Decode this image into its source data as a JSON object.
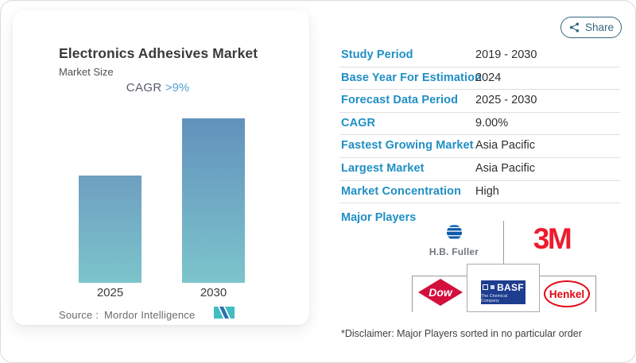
{
  "share": {
    "label": "Share"
  },
  "chart_card": {
    "title": "Electronics Adhesives Market",
    "subtitle": "Market Size",
    "cagr_label": "CAGR",
    "cagr_value": ">9%",
    "source_label": "Source :",
    "source_value": "Mordor Intelligence",
    "logo_name": "mordor-intelligence-logo"
  },
  "chart_data": {
    "type": "bar",
    "title": "Electronics Adhesives Market — Market Size",
    "categories": [
      "2025",
      "2030"
    ],
    "values": [
      65,
      100
    ],
    "ylim": [
      0,
      100
    ],
    "xlabel": "",
    "ylabel": "",
    "grid": false,
    "annotations": [
      "CAGR >9%"
    ],
    "colors": {
      "bar_tops": [
        "#6e9fc0",
        "#6292bc"
      ],
      "bar_bottom": "#7cc4cc"
    }
  },
  "table": {
    "rows": [
      {
        "label": "Study Period",
        "value": "2019 - 2030"
      },
      {
        "label": "Base Year For Estimation",
        "value": "2024"
      },
      {
        "label": "Forecast Data Period",
        "value": "2025 - 2030"
      },
      {
        "label": "CAGR",
        "value": "9.00%"
      },
      {
        "label": "Fastest Growing Market",
        "value": "Asia Pacific"
      },
      {
        "label": "Largest Market",
        "value": "Asia Pacific"
      },
      {
        "label": "Market Concentration",
        "value": "High"
      }
    ]
  },
  "major_players": {
    "label": "Major Players",
    "players": [
      "H.B. Fuller",
      "3M",
      "Dow",
      "BASF",
      "Henkel"
    ],
    "basf_sub": "The Chemical Company"
  },
  "disclaimer": "*Disclaimer: Major Players sorted in no particular order",
  "colors": {
    "accent_blue": "#1f8fc4",
    "cagr_blue": "#57a0d4",
    "share_teal": "#35677f",
    "divider_gray": "#e0e0e0",
    "grid_gray": "#9a9a9a",
    "red_3m": "#ee1b2d",
    "red_dow": "#d40f3e",
    "red_henkel": "#e30613",
    "navy_basf": "#1e3d8f",
    "blue_hbfuller": "#0d5bab",
    "teal_logo": "#3fbdc2",
    "blue_logo": "#2e6fae"
  }
}
